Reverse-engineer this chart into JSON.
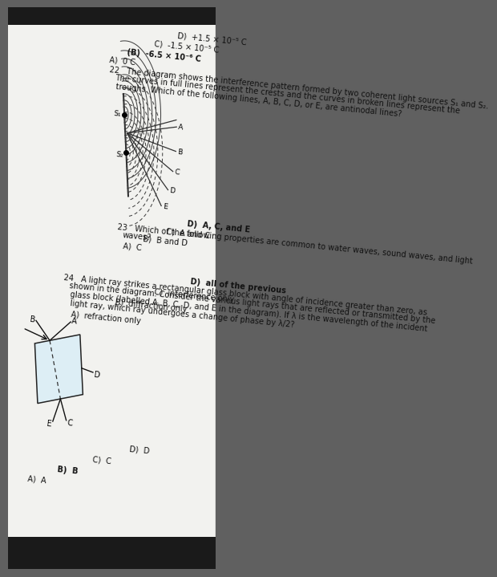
{
  "bg_color": "#b0b0b0",
  "page_color": "#f5f5f2",
  "rot": 90,
  "q22_ans_line": "A)  0 C          (B)  -6.5 × 10⁻⁶ C          C)  -1.5 × 10⁻⁵ C          D)  +1.5 × 10⁻⁵ C",
  "q22_line1": "22   The diagram shows the interference pattern formed by two coherent light sources S₁ and S₂.",
  "q22_line2": "      The curves in full lines represent the crests and the curves in broken lines represent the",
  "q22_line3": "      troughs. Which of the following lines, A, B, C, D, or E, are antinodal lines?",
  "q23_line1": "23   Which of the following properties are common to water waves, sound waves, and light",
  "q23_line2": "      waves?",
  "q23_ans": "A)  C          B)  B and D          C)  A and C          D)  A, C, and E",
  "q24_line1": "24   A light ray strikes a rectangular glass block with angle of incidence greater than zero, as",
  "q24_line2": "      shown in the diagram. Consider the various light rays that are reflected or transmitted by the",
  "q24_line3": "      glass block (labelled A, B, C, D, and E in the diagram). If λ is the wavelength of the incident",
  "q24_line4": "      light ray, which ray undergoes a change of phase by λ/2?",
  "q24_ans1": "A)  refraction only          B)  diffraction only",
  "q24_ans2": "C)  interference only          D)  all of the previous",
  "q24b_ans": "A)  A          B)  B          C)  C          D)  D"
}
